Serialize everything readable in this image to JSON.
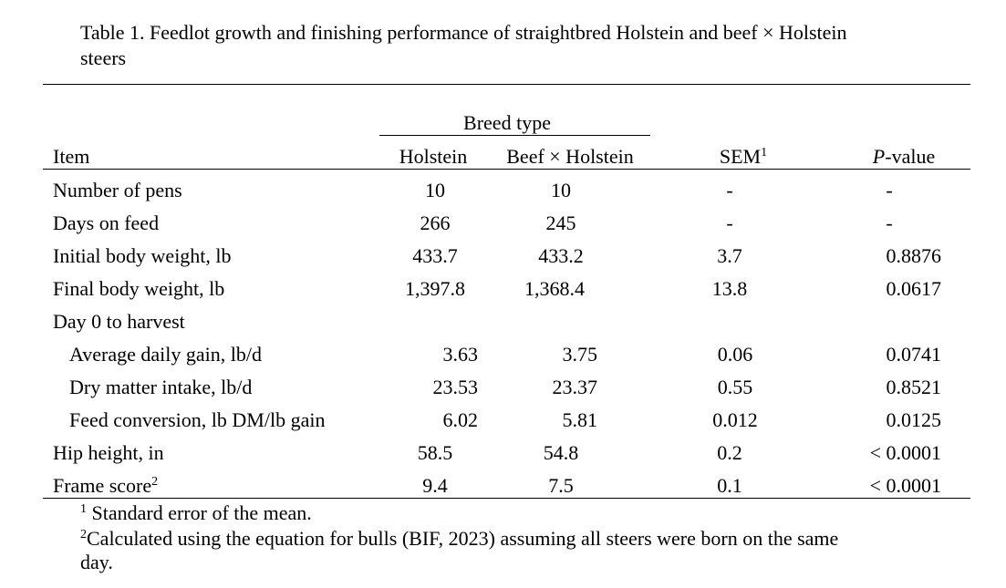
{
  "caption": {
    "line1": "Table 1. Feedlot growth and finishing performance of straightbred Holstein and beef × Holstein",
    "line2": "steers"
  },
  "header": {
    "spanner": "Breed type",
    "item": "Item",
    "holstein": "Holstein",
    "beef": "Beef × Holstein",
    "sem": "SEM",
    "sem_sup": "1",
    "p_italic": "P",
    "p_rest": "-value"
  },
  "rows": [
    {
      "label": "Number of pens",
      "holstein": "10",
      "beef": "10",
      "sem": "-",
      "p": "-"
    },
    {
      "label": "Days on feed",
      "holstein": "266",
      "beef": "245",
      "sem": "-",
      "p": "-"
    },
    {
      "label": "Initial body weight, lb",
      "holstein": "433.7",
      "beef": "433.2",
      "sem": "3.7",
      "p": "0.8876"
    },
    {
      "label": "Final body weight, lb",
      "holstein": "1,397.8",
      "beef": "1,368.4",
      "sem": "13.8",
      "p": "0.0617"
    },
    {
      "label": "Day 0 to harvest",
      "holstein": "",
      "beef": "",
      "sem": "",
      "p": ""
    },
    {
      "label": "Average daily gain, lb/d",
      "holstein": "3.63",
      "beef": "3.75",
      "sem": "0.06",
      "p": "0.0741"
    },
    {
      "label": "Dry matter intake, lb/d",
      "holstein": "23.53",
      "beef": "23.37",
      "sem": "0.55",
      "p": "0.8521"
    },
    {
      "label": "Feed conversion, lb DM/lb gain",
      "holstein": "6.02",
      "beef": "5.81",
      "sem": "0.012",
      "p": "0.0125"
    },
    {
      "label": "Hip height, in",
      "holstein": "58.5",
      "beef": "54.8",
      "sem": "0.2",
      "p": "< 0.0001"
    },
    {
      "label": "Frame score",
      "label_sup": "2",
      "holstein": "9.4",
      "beef": "7.5",
      "sem": "0.1",
      "p": "< 0.0001"
    }
  ],
  "footnotes": {
    "fn1_mark": "1",
    "fn1_text": " Standard error of the mean.",
    "fn2_mark": "2",
    "fn2_line1": "Calculated using the equation for bulls (BIF, 2023) assuming all steers were born on the same",
    "fn2_line2": "day."
  }
}
